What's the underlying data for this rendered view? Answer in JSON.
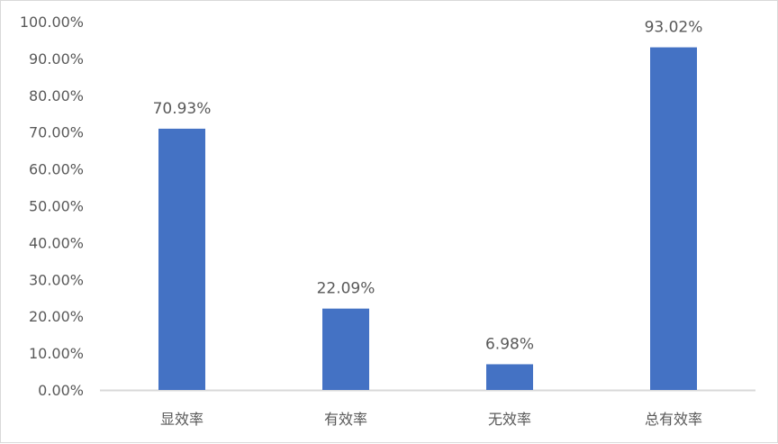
{
  "chart_data": {
    "type": "bar",
    "title": "",
    "xlabel": "",
    "ylabel": "",
    "categories": [
      "显效率",
      "有效率",
      "无效率",
      "总有效率"
    ],
    "values": [
      70.93,
      22.09,
      6.98,
      93.02
    ],
    "data_labels": [
      "70.93%",
      "22.09%",
      "6.98%",
      "93.02%"
    ],
    "ylim": [
      0,
      100
    ],
    "yticks": [
      0,
      10,
      20,
      30,
      40,
      50,
      60,
      70,
      80,
      90,
      100
    ],
    "ytick_labels": [
      "0.00%",
      "10.00%",
      "20.00%",
      "30.00%",
      "40.00%",
      "50.00%",
      "60.00%",
      "70.00%",
      "80.00%",
      "90.00%",
      "100.00%"
    ],
    "grid": false,
    "legend": "none",
    "bar_color": "#4472C4"
  }
}
